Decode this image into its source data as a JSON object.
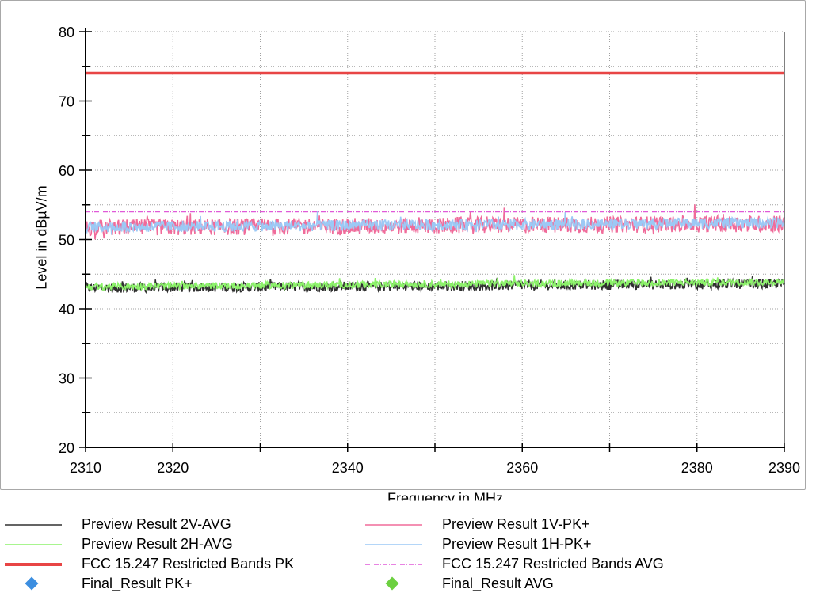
{
  "chart_data": {
    "type": "line",
    "xlabel": "Frequency in MHz",
    "ylabel": "Level in dBµV/m",
    "xlim": [
      2310,
      2390
    ],
    "ylim": [
      20,
      80
    ],
    "x_ticks": [
      2310,
      2320,
      2340,
      2360,
      2380,
      2390
    ],
    "y_ticks": [
      20,
      30,
      40,
      50,
      60,
      70,
      80
    ],
    "grid": true,
    "legend_position": "bottom",
    "series": [
      {
        "name": "Preview Result 2V-AVG",
        "color": "#303030",
        "style": "noise",
        "mean_start": 43.0,
        "mean_end": 43.6,
        "spread": 0.7
      },
      {
        "name": "Preview Result 1V-PK+",
        "color": "#f06b9a",
        "style": "noise",
        "mean_start": 51.7,
        "mean_end": 52.3,
        "spread": 1.2
      },
      {
        "name": "Preview Result 2H-AVG",
        "color": "#8cf26a",
        "style": "noise",
        "mean_start": 43.2,
        "mean_end": 43.9,
        "spread": 0.5
      },
      {
        "name": "Preview Result 1H-PK+",
        "color": "#9cc9f5",
        "style": "noise",
        "mean_start": 51.8,
        "mean_end": 52.4,
        "spread": 0.8
      },
      {
        "name": "FCC 15.247 Restricted Bands PK",
        "color": "#e84545",
        "style": "limit-solid",
        "value": 74
      },
      {
        "name": "FCC 15.247 Restricted Bands AVG",
        "color": "#e05ad8",
        "style": "limit-dashdot",
        "value": 54
      },
      {
        "name": "Final_Result PK+",
        "color": "#3c8ee0",
        "style": "marker",
        "points": []
      },
      {
        "name": "Final_Result AVG",
        "color": "#6cd040",
        "style": "marker",
        "points": []
      }
    ]
  }
}
